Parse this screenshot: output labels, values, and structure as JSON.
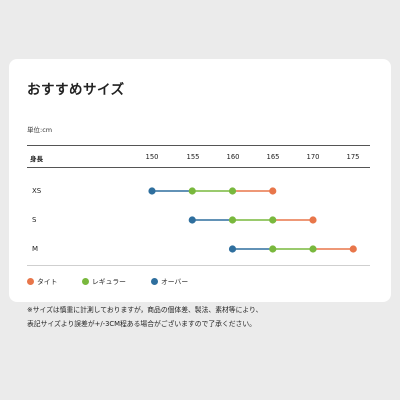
{
  "title": "おすすめサイズ",
  "unit_label": "単位:cm",
  "header_label": "身長",
  "ticks": [
    "150",
    "155",
    "160",
    "165",
    "170",
    "175"
  ],
  "colors": {
    "tight": "#e8764a",
    "regular": "#79b83d",
    "over": "#2f6f9e",
    "line_tight": "#e8764a",
    "line_over": "#2f6f9e"
  },
  "legend": {
    "tight": "タイト",
    "regular": "レギュラー",
    "over": "オーバー"
  },
  "chart_data": {
    "type": "scatter",
    "x_axis_label": "身長",
    "unit": "cm",
    "x_ticks": [
      150,
      155,
      160,
      165,
      170,
      175
    ],
    "sizes": [
      {
        "name": "XS",
        "over": 150,
        "regular": [
          155,
          160
        ],
        "tight": 165
      },
      {
        "name": "S",
        "over": 155,
        "regular": [
          160,
          165
        ],
        "tight": 170
      },
      {
        "name": "M",
        "over": 160,
        "regular": [
          165,
          170
        ],
        "tight": 175
      }
    ]
  },
  "note_line1": "※サイズは慎重に計測しておりますが，商品の個体差、製法、素材等により、",
  "note_line2": "表記サイズより誤差が+/-3CM程ある場合がございますので了承ください。"
}
